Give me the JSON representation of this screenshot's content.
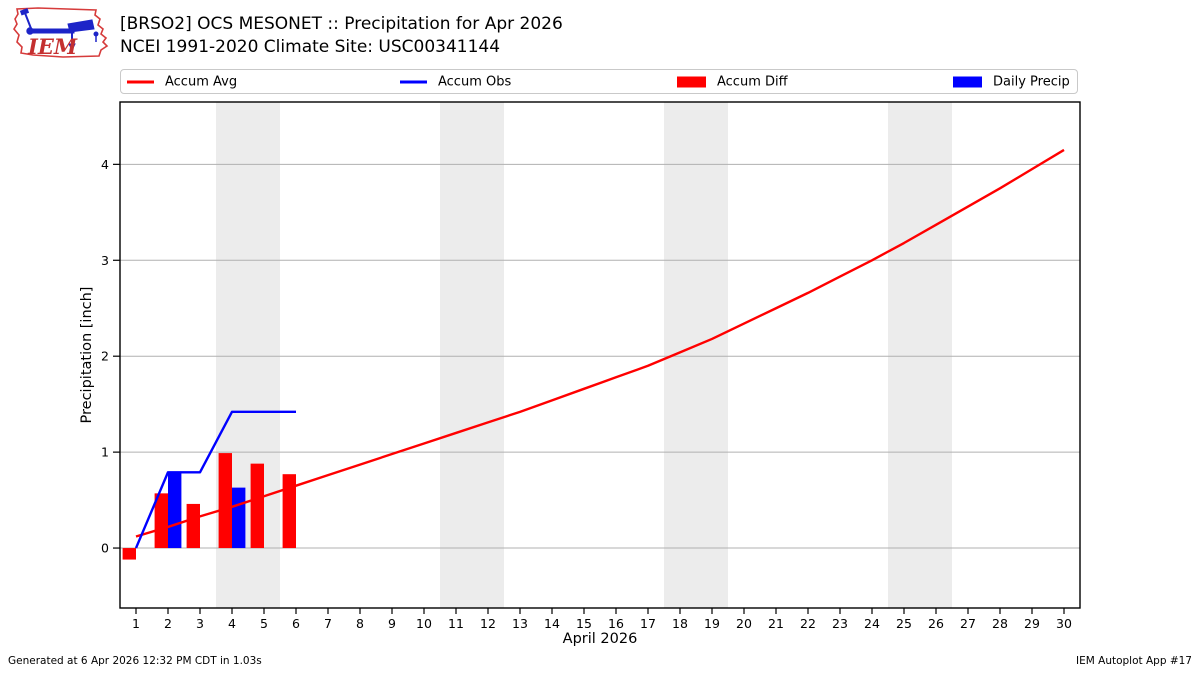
{
  "header": {
    "title_line1": "[BRSO2] OCS MESONET :: Precipitation for Apr 2026",
    "title_line2": "NCEI 1991-2020 Climate Site: USC00341144",
    "logo_text": "IEM"
  },
  "legend": {
    "items": [
      {
        "label": "Accum Avg",
        "style": "line",
        "color": "#ff0000"
      },
      {
        "label": "Accum Obs",
        "style": "line",
        "color": "#0000ff"
      },
      {
        "label": "Accum Diff",
        "style": "box",
        "color": "#ff0000"
      },
      {
        "label": "Daily Precip",
        "style": "box",
        "color": "#0000ff"
      }
    ]
  },
  "chart_data": {
    "type": "line+bar",
    "title": "[BRSO2] OCS MESONET :: Precipitation for Apr 2026",
    "xlabel": "April 2026",
    "ylabel": "Precipitation [inch]",
    "xlim": [
      0.5,
      30.5
    ],
    "ylim": [
      -0.625,
      4.65
    ],
    "x_ticks": [
      1,
      2,
      3,
      4,
      5,
      6,
      7,
      8,
      9,
      10,
      11,
      12,
      13,
      14,
      15,
      16,
      17,
      18,
      19,
      20,
      21,
      22,
      23,
      24,
      25,
      26,
      27,
      28,
      29,
      30
    ],
    "y_ticks": [
      0,
      1,
      2,
      3,
      4
    ],
    "grid": "horizontal",
    "grid_color": "#b0b0b0",
    "band_color": "#ececec",
    "weekend_bands_x": [
      [
        3.5,
        5.5
      ],
      [
        10.5,
        12.5
      ],
      [
        17.5,
        19.5
      ],
      [
        24.5,
        26.5
      ]
    ],
    "series": [
      {
        "name": "Accum Avg",
        "type": "line",
        "color": "#ff0000",
        "x": [
          1,
          2,
          3,
          4,
          5,
          6,
          7,
          8,
          9,
          10,
          11,
          12,
          13,
          14,
          15,
          16,
          17,
          18,
          19,
          20,
          21,
          22,
          23,
          24,
          25,
          26,
          27,
          28,
          29,
          30
        ],
        "y": [
          0.12,
          0.22,
          0.33,
          0.43,
          0.54,
          0.65,
          0.76,
          0.87,
          0.98,
          1.09,
          1.2,
          1.31,
          1.42,
          1.54,
          1.66,
          1.78,
          1.9,
          2.04,
          2.18,
          2.34,
          2.5,
          2.66,
          2.83,
          3.0,
          3.18,
          3.37,
          3.56,
          3.75,
          3.95,
          4.15
        ]
      },
      {
        "name": "Accum Obs",
        "type": "line",
        "color": "#0000ff",
        "x": [
          1,
          2,
          3,
          4,
          5,
          6
        ],
        "y": [
          0.0,
          0.79,
          0.79,
          1.42,
          1.42,
          1.42
        ]
      },
      {
        "name": "Accum Diff",
        "type": "bar",
        "bar_side": "left",
        "color": "#ff0000",
        "x": [
          1,
          2,
          3,
          4,
          5,
          6
        ],
        "y": [
          -0.12,
          0.57,
          0.46,
          0.99,
          0.88,
          0.77
        ]
      },
      {
        "name": "Daily Precip",
        "type": "bar",
        "bar_side": "right",
        "color": "#0000ff",
        "x": [
          2,
          4
        ],
        "y": [
          0.79,
          0.63
        ]
      }
    ]
  },
  "footer": {
    "left": "Generated at 6 Apr 2026 12:32 PM CDT in 1.03s",
    "right": "IEM Autoplot App #17"
  }
}
